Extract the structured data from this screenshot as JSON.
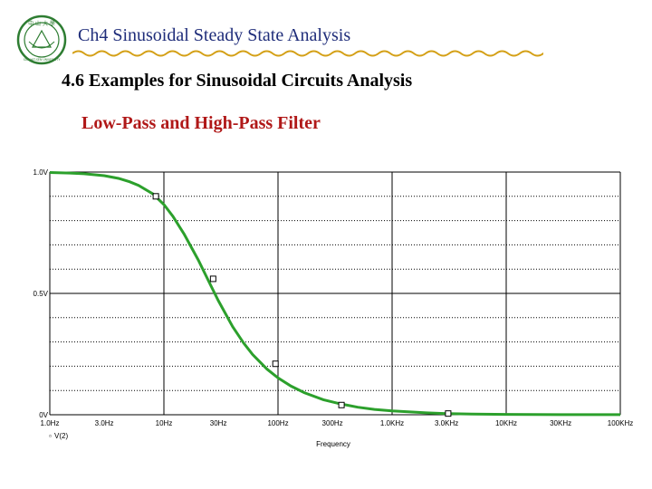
{
  "header": {
    "title": "Ch4  Sinusoidal Steady State Analysis",
    "logo": {
      "top_text": "中 山 大 學",
      "bottom_text": "SUN YAT-SEN UNIVERSITY",
      "color": "#2e7d32"
    }
  },
  "section": {
    "title": "4.6 Examples for Sinusoidal Circuits Analysis"
  },
  "filter": {
    "title": "Low-Pass and High-Pass Filter"
  },
  "colors": {
    "accent": "#1f2d7a",
    "filter_title": "#b01818",
    "wave": "#d4a017",
    "trace": "#2ca02c"
  },
  "chart_data": {
    "type": "line",
    "title": "",
    "xlabel": "Frequency",
    "ylabel": "",
    "x_scale": "log",
    "xlim": [
      1,
      100000
    ],
    "ylim": [
      0,
      1.0
    ],
    "x_ticks": [
      {
        "value": 1,
        "label": "1.0Hz"
      },
      {
        "value": 3,
        "label": "3.0Hz"
      },
      {
        "value": 10,
        "label": "10Hz"
      },
      {
        "value": 30,
        "label": "30Hz"
      },
      {
        "value": 100,
        "label": "100Hz"
      },
      {
        "value": 300,
        "label": "300Hz"
      },
      {
        "value": 1000,
        "label": "1.0KHz"
      },
      {
        "value": 3000,
        "label": "3.0KHz"
      },
      {
        "value": 10000,
        "label": "10KHz"
      },
      {
        "value": 30000,
        "label": "30KHz"
      },
      {
        "value": 100000,
        "label": "100KHz"
      }
    ],
    "y_ticks": [
      {
        "value": 0,
        "label": "0V"
      },
      {
        "value": 0.5,
        "label": "0.5V"
      },
      {
        "value": 1.0,
        "label": "1.0V"
      }
    ],
    "legend": "V(2)",
    "series": [
      {
        "name": "V(2)",
        "x": [
          1,
          1.5,
          2,
          3,
          4,
          5,
          6,
          8,
          10,
          12,
          15,
          20,
          25,
          30,
          40,
          50,
          60,
          80,
          100,
          130,
          170,
          250,
          350,
          500,
          700,
          1000,
          2000,
          3000,
          5000,
          10000,
          30000,
          100000
        ],
        "values": [
          0.998,
          0.996,
          0.993,
          0.985,
          0.974,
          0.96,
          0.945,
          0.91,
          0.866,
          0.817,
          0.745,
          0.638,
          0.545,
          0.47,
          0.363,
          0.295,
          0.248,
          0.188,
          0.152,
          0.118,
          0.091,
          0.062,
          0.045,
          0.031,
          0.022,
          0.016,
          0.008,
          0.005,
          0.003,
          0.0016,
          0.0005,
          0.0002
        ]
      }
    ],
    "markers": [
      {
        "x": 8.5,
        "y": 0.9
      },
      {
        "x": 27,
        "y": 0.56
      },
      {
        "x": 95,
        "y": 0.21
      },
      {
        "x": 360,
        "y": 0.04
      },
      {
        "x": 3100,
        "y": 0.005
      }
    ]
  }
}
